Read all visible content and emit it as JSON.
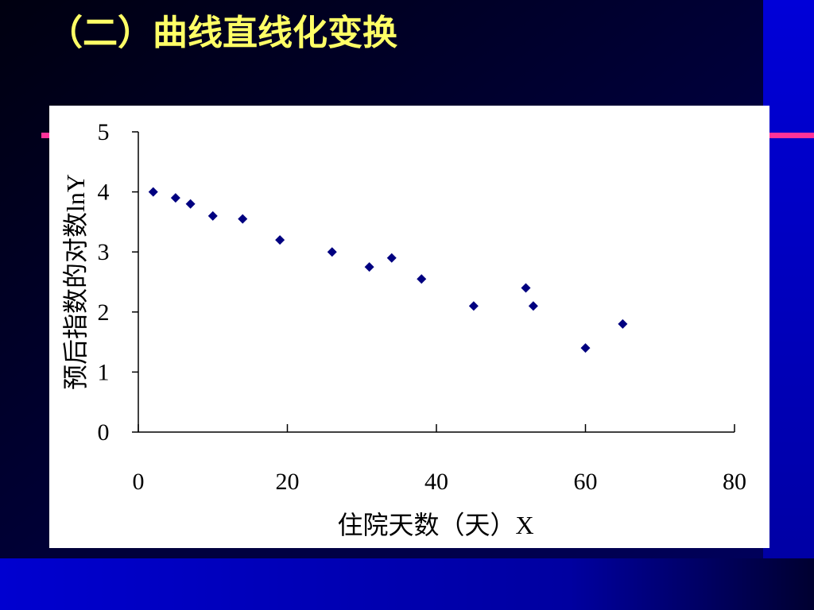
{
  "title": "（二）曲线直线化变换",
  "chart_data": {
    "type": "scatter",
    "x_label": "住院天数（天）X",
    "y_label": "预后指数的对数lnY",
    "x": [
      2,
      5,
      7,
      10,
      14,
      19,
      26,
      31,
      34,
      38,
      45,
      52,
      53,
      60,
      65
    ],
    "values": [
      4.0,
      3.9,
      3.8,
      3.6,
      3.55,
      3.2,
      3.0,
      2.75,
      2.9,
      2.55,
      2.1,
      2.4,
      2.1,
      1.4,
      1.8
    ],
    "color": "#000080",
    "xlim": [
      0,
      80
    ],
    "xticks": [
      0,
      20,
      40,
      60,
      80
    ],
    "ylim": [
      0,
      5
    ],
    "yticks": [
      0,
      1,
      2,
      3,
      4,
      5
    ]
  }
}
